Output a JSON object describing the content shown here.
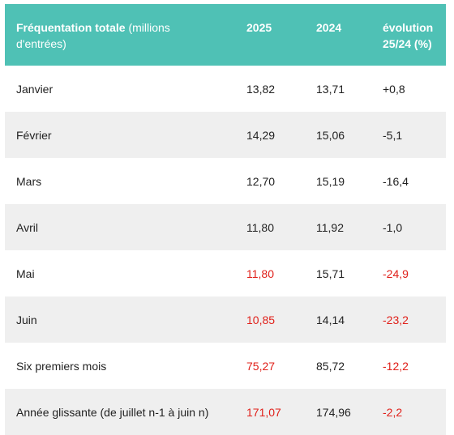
{
  "table": {
    "header": {
      "label_bold": "Fréquentation totale",
      "label_rest": "(millions d'entrées)",
      "col_2025": "2025",
      "col_2024": "2024",
      "col_evo": "évolution 25/24 (%)"
    },
    "rows": [
      {
        "label": "Janvier",
        "v2025": "13,82",
        "v2024": "13,71",
        "evo": "+0,8",
        "highlight_2025": false,
        "highlight_evo": false
      },
      {
        "label": "Février",
        "v2025": "14,29",
        "v2024": "15,06",
        "evo": "-5,1",
        "highlight_2025": false,
        "highlight_evo": false
      },
      {
        "label": "Mars",
        "v2025": "12,70",
        "v2024": "15,19",
        "evo": "-16,4",
        "highlight_2025": false,
        "highlight_evo": false
      },
      {
        "label": "Avril",
        "v2025": "11,80",
        "v2024": "11,92",
        "evo": "-1,0",
        "highlight_2025": false,
        "highlight_evo": false
      },
      {
        "label": "Mai",
        "v2025": "11,80",
        "v2024": "15,71",
        "evo": "-24,9",
        "highlight_2025": true,
        "highlight_evo": true
      },
      {
        "label": "Juin",
        "v2025": "10,85",
        "v2024": "14,14",
        "evo": "-23,2",
        "highlight_2025": true,
        "highlight_evo": true
      },
      {
        "label": "Six premiers mois",
        "v2025": "75,27",
        "v2024": "85,72",
        "evo": "-12,2",
        "highlight_2025": true,
        "highlight_evo": true
      },
      {
        "label": "Année glissante (de juillet n-1 à juin n)",
        "v2025": "171,07",
        "v2024": "174,96",
        "evo": "-2,2",
        "highlight_2025": true,
        "highlight_evo": true
      }
    ]
  },
  "colors": {
    "header_bg": "#4fc1b5",
    "header_text": "#ffffff",
    "stripe_bg": "#efefef",
    "negative_highlight": "#e0201a",
    "text": "#222222"
  }
}
